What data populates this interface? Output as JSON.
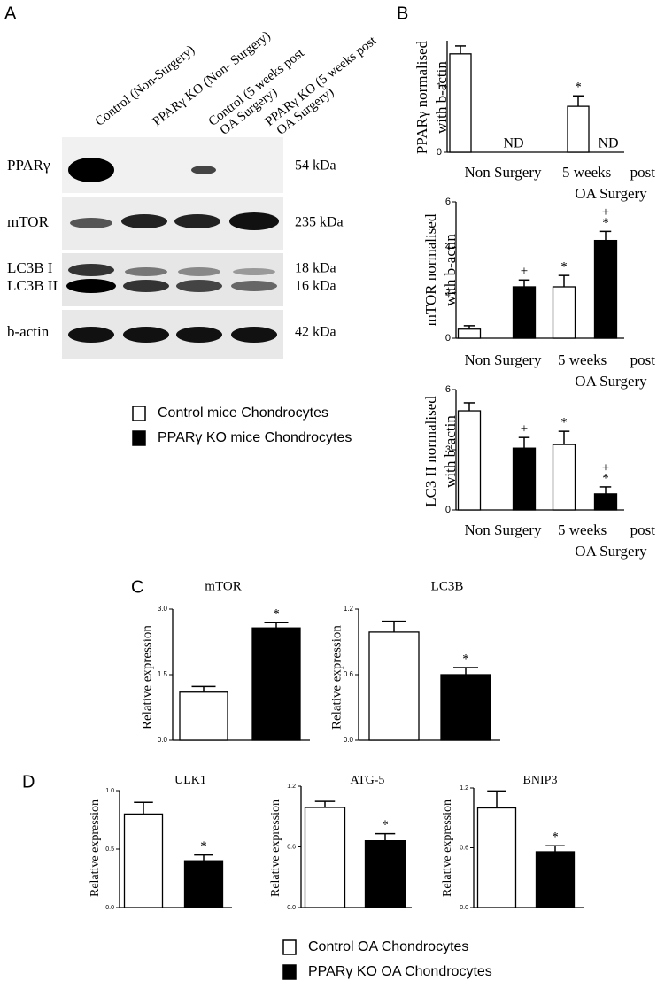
{
  "panel_labels": [
    "A",
    "B",
    "C",
    "D"
  ],
  "blot": {
    "lanes": [
      [
        "Control (Non-Surgery)"
      ],
      [
        "PPARγ KO (Non- Surgery)"
      ],
      [
        "Control (5 weeks post",
        "OA Surgery)"
      ],
      [
        "PPARγ KO (5 weeks post",
        "OA Surgery)"
      ]
    ],
    "rows": [
      {
        "labels": [
          "PPARγ"
        ],
        "sizes": [
          "54 kDa"
        ]
      },
      {
        "labels": [
          "mTOR"
        ],
        "sizes": [
          "235 kDa"
        ]
      },
      {
        "labels": [
          "LC3B I",
          "LC3B II"
        ],
        "sizes": [
          "18 kDa",
          "16 kDa"
        ]
      },
      {
        "labels": [
          "b-actin"
        ],
        "sizes": [
          "42 kDa"
        ]
      }
    ]
  },
  "legends": [
    {
      "items": [
        "Control mice Chondrocytes",
        "PPARγ KO mice Chondrocytes"
      ],
      "colors": [
        "#ffffff",
        "#000000"
      ]
    },
    {
      "items": [
        "Control OA Chondrocytes",
        "PPARγ KO OA Chondrocytes"
      ],
      "colors": [
        "#ffffff",
        "#000000"
      ]
    }
  ],
  "chart_data": [
    {
      "type": "bar",
      "ylabel": [
        "PPARγ normalised",
        "with b-actin"
      ],
      "x_labels": [
        "Non Surgery",
        "5 weeks",
        "post",
        "OA Surgery"
      ],
      "values": [
        1.5,
        null,
        0.7,
        null
      ],
      "errors": [
        0.12,
        null,
        0.16,
        null
      ],
      "colors": [
        "#ffffff",
        "#000000",
        "#ffffff",
        "#000000"
      ],
      "bar_labels": [
        [],
        [
          "ND"
        ],
        [
          "*"
        ],
        [
          "ND"
        ]
      ],
      "ylim": [
        0,
        1.7
      ],
      "yticks": [
        0,
        1
      ]
    },
    {
      "type": "bar",
      "ylabel": [
        "mTOR normalised",
        "with b-actin"
      ],
      "x_labels": [
        "Non Surgery",
        "5 weeks",
        "post",
        "OA Surgery"
      ],
      "values": [
        0.4,
        2.26,
        2.26,
        4.3
      ],
      "errors": [
        0.15,
        0.3,
        0.5,
        0.4
      ],
      "colors": [
        "#ffffff",
        "#000000",
        "#ffffff",
        "#000000"
      ],
      "bar_labels": [
        [],
        [
          "+"
        ],
        [
          "*"
        ],
        [
          "+",
          "*"
        ]
      ],
      "ylim": [
        0,
        6
      ],
      "yticks": [
        0,
        2,
        4,
        6
      ]
    },
    {
      "type": "bar",
      "ylabel": [
        "LC3 II normalised",
        "with b-actin"
      ],
      "x_labels": [
        "Non Surgery",
        "5 weeks",
        "post",
        "OA Surgery"
      ],
      "values": [
        4.94,
        3.08,
        3.26,
        0.8
      ],
      "errors": [
        0.4,
        0.53,
        0.66,
        0.35
      ],
      "colors": [
        "#ffffff",
        "#000000",
        "#ffffff",
        "#000000"
      ],
      "bar_labels": [
        [],
        [
          "+"
        ],
        [
          "*"
        ],
        [
          "+",
          "*"
        ]
      ],
      "ylim": [
        0,
        6
      ],
      "yticks": [
        0,
        3,
        6
      ]
    },
    {
      "type": "bar",
      "title": "mTOR",
      "ylabel": [
        "Relative expression"
      ],
      "values": [
        1.1,
        2.57
      ],
      "errors": [
        0.13,
        0.12
      ],
      "colors": [
        "#ffffff",
        "#000000"
      ],
      "bar_labels": [
        [],
        [
          "*"
        ]
      ],
      "ylim": [
        0,
        3
      ],
      "yticks": [
        {
          "value": 0,
          "label": "0.0"
        },
        1.5,
        {
          "value": 3,
          "label": "3.0"
        }
      ]
    },
    {
      "type": "bar",
      "title": "LC3B",
      "ylabel": [
        "Relative expression"
      ],
      "values": [
        0.99,
        0.6
      ],
      "errors": [
        0.1,
        0.065
      ],
      "colors": [
        "#ffffff",
        "#000000"
      ],
      "bar_labels": [
        [],
        [
          "*"
        ]
      ],
      "ylim": [
        0,
        1.2
      ],
      "yticks": [
        {
          "value": 0,
          "label": "0.0"
        },
        0.6,
        1.2
      ]
    },
    {
      "type": "bar",
      "title": "ULK1",
      "ylabel": [
        "Relative expression"
      ],
      "values": [
        0.8,
        0.4
      ],
      "errors": [
        0.1,
        0.05
      ],
      "colors": [
        "#ffffff",
        "#000000"
      ],
      "bar_labels": [
        [],
        [
          "*"
        ]
      ],
      "ylim": [
        0,
        1
      ],
      "yticks": [
        {
          "value": 0,
          "label": "0.0"
        },
        0.5,
        {
          "value": 1,
          "label": "1.0"
        }
      ]
    },
    {
      "type": "bar",
      "title": "ATG-5",
      "ylabel": [
        "Relative expression"
      ],
      "values": [
        0.99,
        0.66
      ],
      "errors": [
        0.06,
        0.07
      ],
      "colors": [
        "#ffffff",
        "#000000"
      ],
      "bar_labels": [
        [],
        [
          "*"
        ]
      ],
      "ylim": [
        0,
        1.2
      ],
      "yticks": [
        {
          "value": 0,
          "label": "0.0"
        },
        0.6,
        1.2
      ]
    },
    {
      "type": "bar",
      "title": "BNIP3",
      "ylabel": [
        "Relative expression"
      ],
      "values": [
        1.0,
        0.56
      ],
      "errors": [
        0.17,
        0.06
      ],
      "colors": [
        "#ffffff",
        "#000000"
      ],
      "bar_labels": [
        [],
        [
          "*"
        ]
      ],
      "ylim": [
        0,
        1.2
      ],
      "yticks": [
        {
          "value": 0,
          "label": "0.0"
        },
        0.6,
        1.2
      ]
    }
  ]
}
